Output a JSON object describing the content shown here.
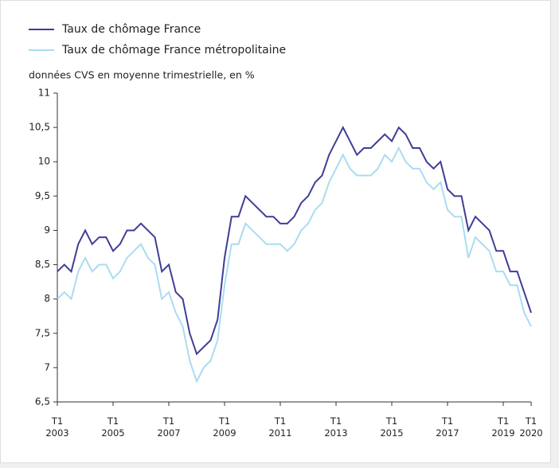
{
  "chart_data": {
    "type": "line",
    "subtitle": "données CVS en moyenne trimestrielle, en %",
    "categories": [
      "T1\n2003",
      null,
      null,
      null,
      null,
      null,
      null,
      null,
      "T1\n2005",
      null,
      null,
      null,
      null,
      null,
      null,
      null,
      "T1\n2007",
      null,
      null,
      null,
      null,
      null,
      null,
      null,
      "T1\n2009",
      null,
      null,
      null,
      null,
      null,
      null,
      null,
      "T1\n2011",
      null,
      null,
      null,
      null,
      null,
      null,
      null,
      "T1\n2013",
      null,
      null,
      null,
      null,
      null,
      null,
      null,
      "T1\n2015",
      null,
      null,
      null,
      null,
      null,
      null,
      null,
      "T1\n2017",
      null,
      null,
      null,
      null,
      null,
      null,
      null,
      "T1\n2019",
      null,
      null,
      null,
      "T1\n2020"
    ],
    "series": [
      {
        "name": "Taux de chômage France",
        "color": "#3f3d97",
        "values": [
          8.4,
          8.5,
          8.4,
          8.8,
          9.0,
          8.8,
          8.9,
          8.9,
          8.7,
          8.8,
          9.0,
          9.0,
          9.1,
          9.0,
          8.9,
          8.4,
          8.5,
          8.1,
          8.0,
          7.5,
          7.2,
          7.3,
          7.4,
          7.7,
          8.6,
          9.2,
          9.2,
          9.5,
          9.4,
          9.3,
          9.2,
          9.2,
          9.1,
          9.1,
          9.2,
          9.4,
          9.5,
          9.7,
          9.8,
          10.1,
          10.3,
          10.5,
          10.3,
          10.1,
          10.2,
          10.2,
          10.3,
          10.4,
          10.3,
          10.5,
          10.4,
          10.2,
          10.2,
          10.0,
          9.9,
          10.0,
          9.6,
          9.5,
          9.5,
          9.0,
          9.2,
          9.1,
          9.0,
          8.7,
          8.7,
          8.4,
          8.4,
          8.1,
          7.8
        ]
      },
      {
        "name": "Taux de chômage France métropolitaine",
        "color": "#a9dcf0",
        "values": [
          8.0,
          8.1,
          8.0,
          8.4,
          8.6,
          8.4,
          8.5,
          8.5,
          8.3,
          8.4,
          8.6,
          8.7,
          8.8,
          8.6,
          8.5,
          8.0,
          8.1,
          7.8,
          7.6,
          7.1,
          6.8,
          7.0,
          7.1,
          7.4,
          8.2,
          8.8,
          8.8,
          9.1,
          9.0,
          8.9,
          8.8,
          8.8,
          8.8,
          8.7,
          8.8,
          9.0,
          9.1,
          9.3,
          9.4,
          9.7,
          9.9,
          10.1,
          9.9,
          9.8,
          9.8,
          9.8,
          9.9,
          10.1,
          10.0,
          10.2,
          10.0,
          9.9,
          9.9,
          9.7,
          9.6,
          9.7,
          9.3,
          9.2,
          9.2,
          8.6,
          8.9,
          8.8,
          8.7,
          8.4,
          8.4,
          8.2,
          8.2,
          7.8,
          7.6
        ]
      }
    ],
    "ylim": [
      6.5,
      11
    ],
    "yticks": [
      {
        "value": 6.5,
        "label": "6,5"
      },
      7,
      {
        "value": 7.5,
        "label": "7,5"
      },
      8,
      {
        "value": 8.5,
        "label": "8,5"
      },
      9,
      {
        "value": 9.5,
        "label": "9,5"
      },
      10,
      {
        "value": 10.5,
        "label": "10,5"
      },
      11
    ],
    "legend": "top-left"
  }
}
